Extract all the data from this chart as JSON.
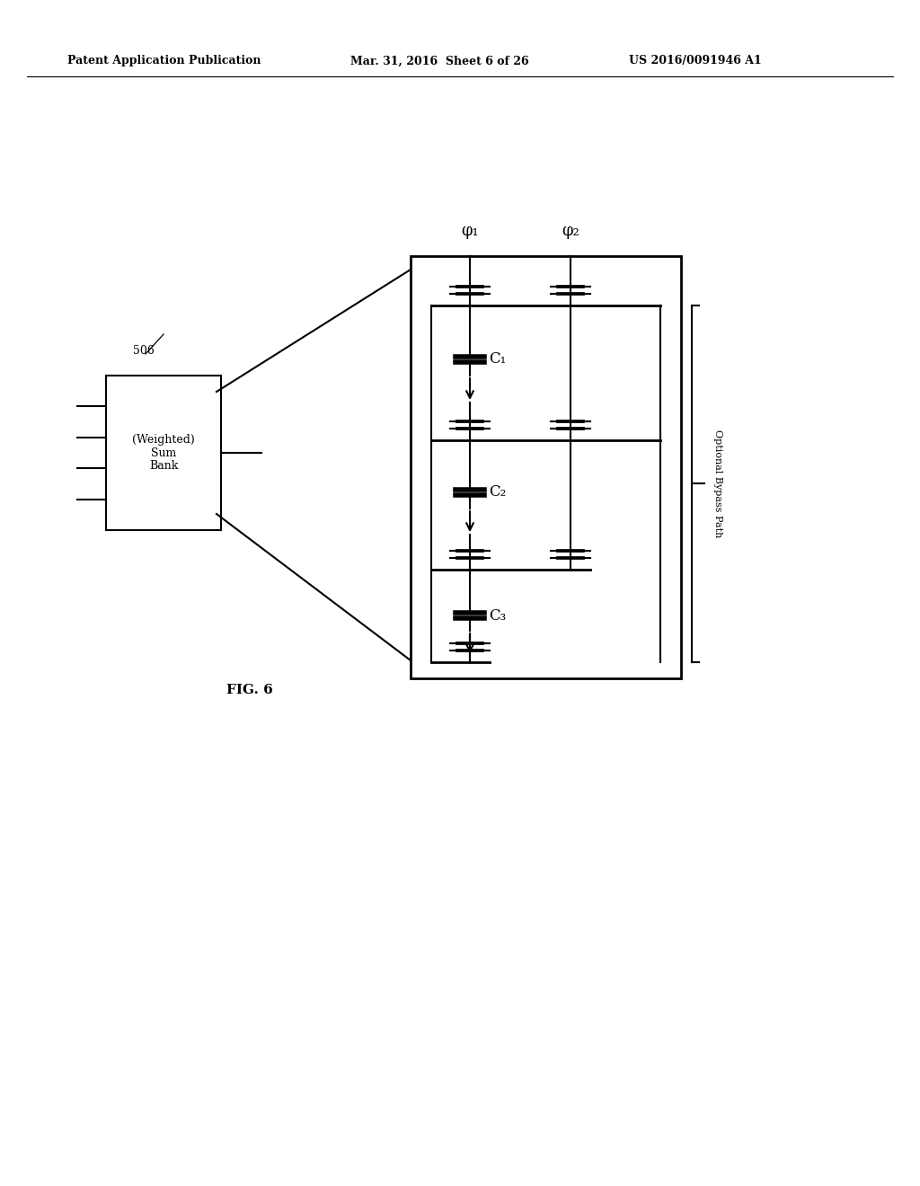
{
  "bg_color": "#ffffff",
  "header_left": "Patent Application Publication",
  "header_center": "Mar. 31, 2016  Sheet 6 of 26",
  "header_right": "US 2016/0091946 A1",
  "fig_label": "FIG. 6",
  "block_label": "506",
  "block_text": "(Weighted)\nSum\nBank",
  "phi1_label": "φ₁",
  "phi2_label": "φ₂",
  "c1_label": "C₁",
  "c2_label": "C₂",
  "c3_label": "C₃",
  "bypass_label": "Optional Bypass Path"
}
